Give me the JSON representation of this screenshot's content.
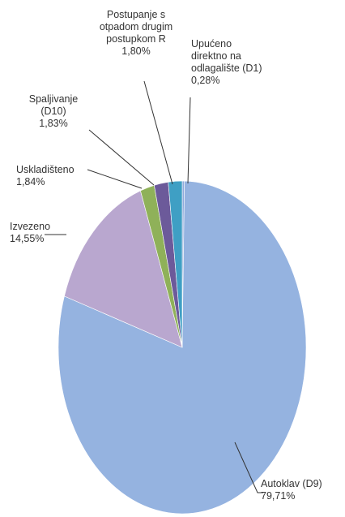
{
  "chart_data": {
    "type": "pie",
    "title": "",
    "slices": [
      {
        "label": "Upućeno direktno na odlagalište (D1)",
        "lines": [
          "Upućeno",
          "direktno na",
          "odlagalište (D1)"
        ],
        "value": 0.28,
        "value_label": "0,28%",
        "color": "#8faadc"
      },
      {
        "label": "Autoklav (D9)",
        "lines": [
          "Autoklav (D9)"
        ],
        "value": 79.71,
        "value_label": "79,71%",
        "color": "#95b3e0"
      },
      {
        "label": "Izvezeno",
        "lines": [
          "Izvezeno"
        ],
        "value": 14.55,
        "value_label": "14,55%",
        "color": "#b9a7cf"
      },
      {
        "label": "Uskladišteno",
        "lines": [
          "Uskladišteno"
        ],
        "value": 1.84,
        "value_label": "1,84%",
        "color": "#8fb159"
      },
      {
        "label": "Spaljivanje (D10)",
        "lines": [
          "Spaljivanje",
          "(D10)"
        ],
        "value": 1.83,
        "value_label": "1,83%",
        "color": "#6c5a9a"
      },
      {
        "label": "Postupanje s otpadom drugim postupkom R",
        "lines": [
          "Postupanje s",
          "otpadom drugim",
          "postupkom R"
        ],
        "value": 1.8,
        "value_label": "1,80%",
        "color": "#3f9fc4"
      }
    ]
  }
}
